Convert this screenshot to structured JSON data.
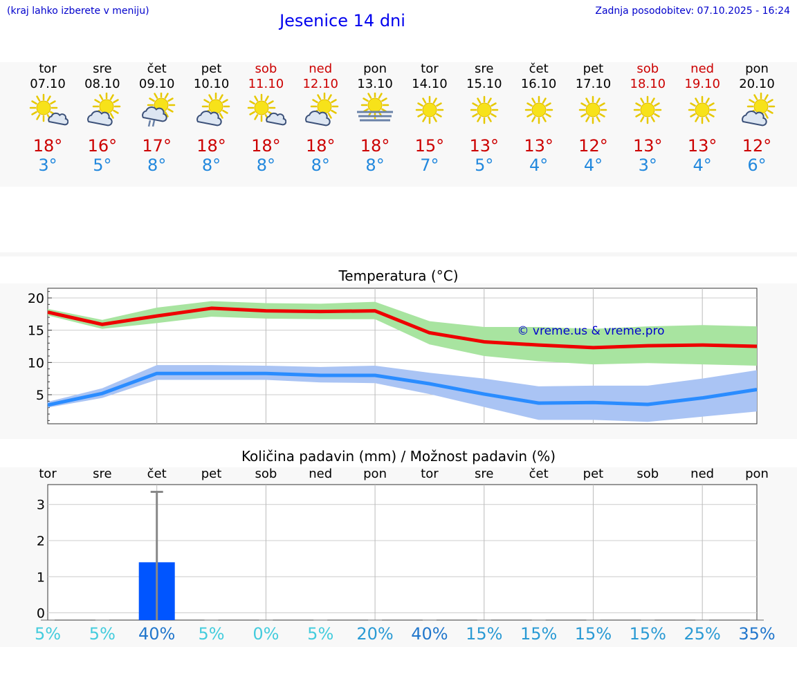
{
  "header": {
    "menu_hint": "(kraj lahko izberete v meniju)",
    "title": "Jesenice 14 dni",
    "updated": "Zadnja posodobitev: 07.10.2025 - 16:24"
  },
  "colors": {
    "max_line": "#ee0000",
    "max_band": "#a8e4a0",
    "min_line": "#2a8cff",
    "min_band": "#aac4f4",
    "rain_bar": "#0055ff",
    "title": "#0000ee"
  },
  "days": [
    {
      "name": "tor",
      "date": "07.10",
      "weekend": false,
      "icon": "sun-cloud-icon",
      "tmax": "18°",
      "tmin": "3°"
    },
    {
      "name": "sre",
      "date": "08.10",
      "weekend": false,
      "icon": "cloud-sun-icon",
      "tmax": "16°",
      "tmin": "5°"
    },
    {
      "name": "čet",
      "date": "09.10",
      "weekend": false,
      "icon": "cloud-sun-rain-icon",
      "tmax": "17°",
      "tmin": "8°"
    },
    {
      "name": "pet",
      "date": "10.10",
      "weekend": false,
      "icon": "cloud-sun-icon",
      "tmax": "18°",
      "tmin": "8°"
    },
    {
      "name": "sob",
      "date": "11.10",
      "weekend": true,
      "icon": "sun-cloud-icon",
      "tmax": "18°",
      "tmin": "8°"
    },
    {
      "name": "ned",
      "date": "12.10",
      "weekend": true,
      "icon": "cloud-sun-icon",
      "tmax": "18°",
      "tmin": "8°"
    },
    {
      "name": "pon",
      "date": "13.10",
      "weekend": false,
      "icon": "sun-fog-icon",
      "tmax": "18°",
      "tmin": "8°"
    },
    {
      "name": "tor",
      "date": "14.10",
      "weekend": false,
      "icon": "sun-icon",
      "tmax": "15°",
      "tmin": "7°"
    },
    {
      "name": "sre",
      "date": "15.10",
      "weekend": false,
      "icon": "sun-icon",
      "tmax": "13°",
      "tmin": "5°"
    },
    {
      "name": "čet",
      "date": "16.10",
      "weekend": false,
      "icon": "sun-icon",
      "tmax": "13°",
      "tmin": "4°"
    },
    {
      "name": "pet",
      "date": "17.10",
      "weekend": false,
      "icon": "sun-icon",
      "tmax": "12°",
      "tmin": "4°"
    },
    {
      "name": "sob",
      "date": "18.10",
      "weekend": true,
      "icon": "sun-icon",
      "tmax": "13°",
      "tmin": "3°"
    },
    {
      "name": "ned",
      "date": "19.10",
      "weekend": true,
      "icon": "sun-icon",
      "tmax": "13°",
      "tmin": "4°"
    },
    {
      "name": "pon",
      "date": "20.10",
      "weekend": false,
      "icon": "cloud-sun-icon",
      "tmax": "12°",
      "tmin": "6°"
    }
  ],
  "chart_data": [
    {
      "type": "line",
      "title": "Temperatura (°C)",
      "watermark": "© vreme.us & vreme.pro",
      "ylim": [
        0.5,
        21.5
      ],
      "yticks": [
        "5",
        "10",
        "15",
        "20"
      ],
      "ytick_values": [
        5,
        10,
        15,
        20
      ],
      "grid": true,
      "x": [
        0,
        1,
        2,
        3,
        4,
        5,
        6,
        7,
        8,
        9,
        10,
        11,
        12,
        13
      ],
      "series": [
        {
          "values": [
            17.8,
            15.9,
            17.2,
            18.4,
            18.0,
            17.9,
            18.0,
            14.6,
            13.2,
            12.7,
            12.3,
            12.6,
            12.7,
            12.5
          ],
          "band_low": [
            17.3,
            15.2,
            16.1,
            17.1,
            16.8,
            16.7,
            16.7,
            12.8,
            11.0,
            10.2,
            9.7,
            9.9,
            9.7,
            9.5
          ],
          "band_high": [
            18.3,
            16.6,
            18.5,
            19.5,
            19.2,
            19.1,
            19.4,
            16.4,
            15.5,
            15.5,
            15.2,
            15.6,
            15.8,
            15.6
          ]
        },
        {
          "values": [
            3.4,
            5.2,
            8.3,
            8.3,
            8.3,
            8.0,
            8.0,
            6.7,
            5.1,
            3.7,
            3.8,
            3.5,
            4.5,
            5.8
          ],
          "band_low": [
            3.0,
            4.5,
            7.3,
            7.3,
            7.3,
            6.9,
            6.8,
            5.1,
            3.1,
            1.1,
            1.1,
            0.8,
            1.6,
            2.4
          ],
          "band_high": [
            3.9,
            6.0,
            9.6,
            9.6,
            9.5,
            9.3,
            9.5,
            8.4,
            7.5,
            6.3,
            6.4,
            6.4,
            7.5,
            8.8
          ]
        }
      ]
    },
    {
      "type": "bar",
      "title": "Količina padavin (mm) / Možnost padavin (%)",
      "categories": [
        "tor",
        "sre",
        "čet",
        "pet",
        "sob",
        "ned",
        "pon",
        "tor",
        "sre",
        "čet",
        "pet",
        "sob",
        "ned",
        "pon"
      ],
      "values": [
        0,
        0,
        1.4,
        0,
        0,
        0,
        0,
        0,
        0,
        0,
        0,
        0,
        0,
        0
      ],
      "error_high": [
        0,
        0,
        3.35,
        0,
        0,
        0,
        0,
        0,
        0,
        0,
        0,
        0,
        0,
        0
      ],
      "ylim": [
        -0.2,
        3.55
      ],
      "yticks": [
        "0",
        "1",
        "2",
        "3"
      ],
      "ytick_values": [
        0,
        1,
        2,
        3
      ],
      "probabilities": [
        "5%",
        "5%",
        "40%",
        "5%",
        "0%",
        "5%",
        "20%",
        "40%",
        "15%",
        "15%",
        "15%",
        "15%",
        "25%",
        "35%"
      ],
      "probability_values": [
        5,
        5,
        40,
        5,
        0,
        5,
        20,
        40,
        15,
        15,
        15,
        15,
        25,
        35
      ]
    }
  ]
}
